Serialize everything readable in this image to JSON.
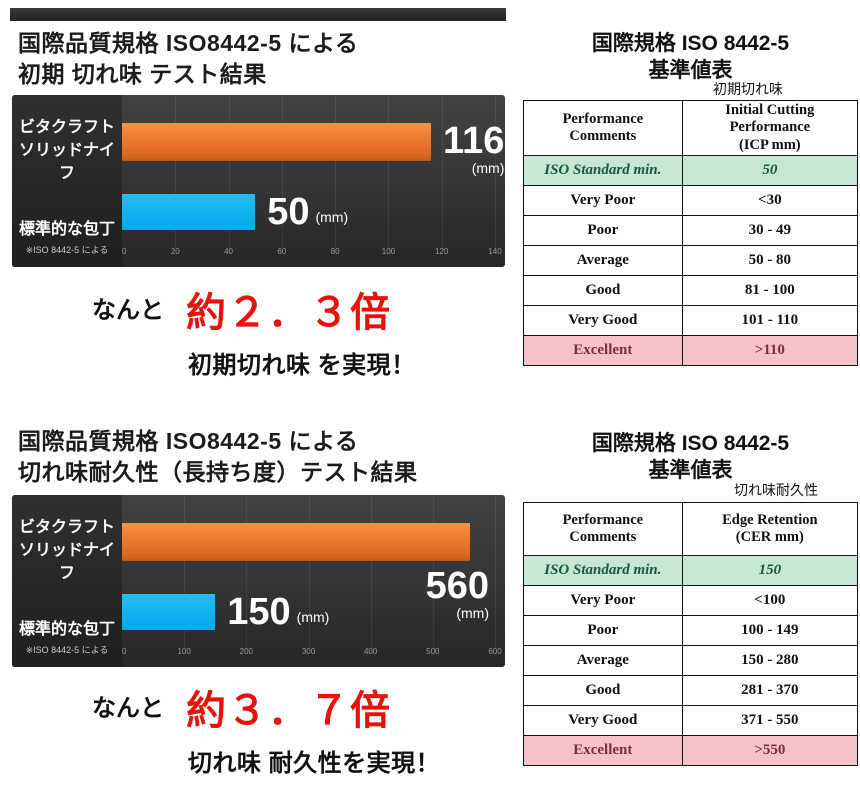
{
  "colors": {
    "bar_orange": "#e8762a",
    "bar_blue": "#00b0f0",
    "highlight_red": "#e8120b",
    "chart_background": "#333333",
    "iso_row_bg": "#c8e6d4",
    "iso_row_text": "#14573f",
    "excellent_row_bg": "#f5c3c7",
    "excellent_row_text": "#7c2d3a"
  },
  "chart_data": [
    {
      "type": "bar",
      "title": "国際品質規格 ISO8442-5 による\n初期 切れ味 テスト結果",
      "categories": [
        "ビタクラフト\nソリッドナイフ",
        "標準的な包丁"
      ],
      "category_note": "※ISO 8442-5 による",
      "values": [
        116,
        50
      ],
      "unit": "(mm)",
      "xlim": [
        0,
        140
      ],
      "xticks": [
        0,
        20,
        40,
        60,
        80,
        100,
        120,
        140
      ],
      "series_colors": [
        "#e8762a",
        "#00b0f0"
      ],
      "grid": true,
      "legend": false
    },
    {
      "type": "bar",
      "title": "国際品質規格 ISO8442-5 による\n切れ味耐久性（長持ち度）テスト結果",
      "categories": [
        "ビタクラフト\nソリッドナイフ",
        "標準的な包丁"
      ],
      "category_note": "※ISO 8442-5 による",
      "values": [
        560,
        150
      ],
      "unit": "(mm)",
      "xlim": [
        0,
        600
      ],
      "xticks": [
        0,
        100,
        200,
        300,
        400,
        500,
        600
      ],
      "series_colors": [
        "#e8762a",
        "#00b0f0"
      ],
      "grid": true,
      "legend": false
    }
  ],
  "sections": [
    {
      "callout": {
        "lead": "なんと",
        "multiplier": "約２．３倍",
        "result": "初期切れ味 を実現！"
      },
      "panel": {
        "title": "国際規格 ISO 8442-5\n基準値表",
        "sub_label": "初期切れ味",
        "table": {
          "headers": [
            "Performance\nComments",
            "Initial Cutting\nPerformance\n(ICP mm)"
          ],
          "rows": [
            {
              "label": "ISO Standard min.",
              "value": "50",
              "style": "iso"
            },
            {
              "label": "Very Poor",
              "value": "<30",
              "style": "normal"
            },
            {
              "label": "Poor",
              "value": "30 - 49",
              "style": "normal"
            },
            {
              "label": "Average",
              "value": "50 - 80",
              "style": "normal"
            },
            {
              "label": "Good",
              "value": "81 - 100",
              "style": "normal"
            },
            {
              "label": "Very Good",
              "value": "101 - 110",
              "style": "normal"
            },
            {
              "label": "Excellent",
              "value": ">110",
              "style": "excellent"
            }
          ]
        }
      }
    },
    {
      "callout": {
        "lead": "なんと",
        "multiplier": "約３．７倍",
        "result": "切れ味 耐久性を実現！"
      },
      "panel": {
        "title": "国際規格 ISO 8442-5\n基準値表",
        "sub_label": "切れ味耐久性",
        "table": {
          "headers": [
            "Performance\nComments",
            "Edge Retention\n(CER mm)"
          ],
          "rows": [
            {
              "label": "ISO Standard min.",
              "value": "150",
              "style": "iso"
            },
            {
              "label": "Very Poor",
              "value": "<100",
              "style": "normal"
            },
            {
              "label": "Poor",
              "value": "100 - 149",
              "style": "normal"
            },
            {
              "label": "Average",
              "value": "150 - 280",
              "style": "normal"
            },
            {
              "label": "Good",
              "value": "281 - 370",
              "style": "normal"
            },
            {
              "label": "Very Good",
              "value": "371 - 550",
              "style": "normal"
            },
            {
              "label": "Excellent",
              "value": ">550",
              "style": "excellent"
            }
          ]
        }
      }
    }
  ]
}
